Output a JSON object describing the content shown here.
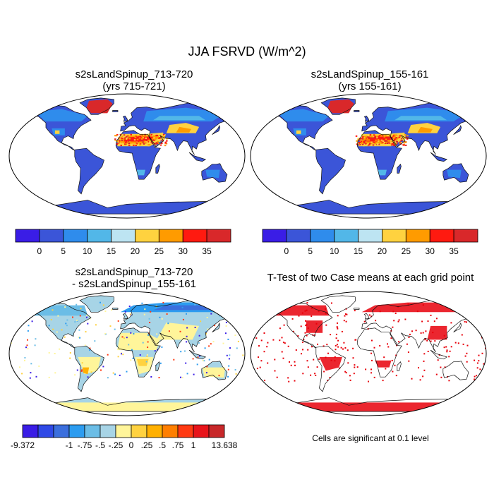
{
  "main_title": "JJA FSRVD (W/m^2)",
  "panels": [
    {
      "id": "p1",
      "title_line1": "s2sLandSpinup_713-720",
      "title_line2": "(yrs 715-721)"
    },
    {
      "id": "p2",
      "title_line1": "s2sLandSpinup_155-161",
      "title_line2": "(yrs 155-161)"
    },
    {
      "id": "p3",
      "title_line1": "s2sLandSpinup_713-720",
      "title_line2": "- s2sLandSpinup_155-161"
    },
    {
      "id": "p4",
      "title_line1": "T-Test of two Case means at each grid point",
      "title_line2": ""
    }
  ],
  "colorbar_abs": {
    "colors": [
      "#3a1de6",
      "#3b55d8",
      "#2f8cec",
      "#52b7e8",
      "#bde4f2",
      "#ffd23f",
      "#ff9b00",
      "#ff1a10",
      "#d9282a"
    ],
    "labels": [
      "0",
      "5",
      "10",
      "15",
      "20",
      "25",
      "30",
      "35"
    ]
  },
  "colorbar_diff": {
    "colors": [
      "#3a1de6",
      "#2f49e6",
      "#3b6fdd",
      "#2c9cf0",
      "#6bbde6",
      "#a7d4e6",
      "#fff59a",
      "#ffd23f",
      "#ffb000",
      "#ff7f00",
      "#ff3a12",
      "#e8141a",
      "#c8282a"
    ],
    "labels": [
      "-9.372",
      "-1",
      "-.75",
      "-.5",
      "-.25",
      "0",
      ".25",
      ".5",
      ".75",
      "1",
      "13.638"
    ]
  },
  "significance_note": "Cells are significant at 0.1 level",
  "colors": {
    "ocean": "#ffffff",
    "land_outline": "#111111",
    "significant": "#e8000a"
  }
}
